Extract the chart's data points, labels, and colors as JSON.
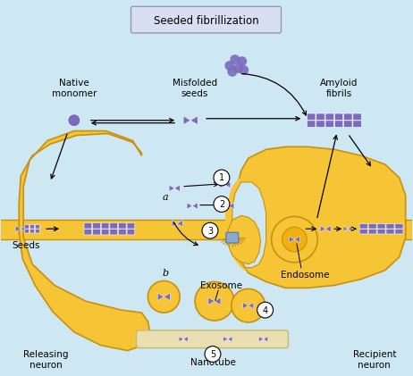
{
  "bg_color": "#cde8f2",
  "neuron_color": "#f5c535",
  "neuron_edge_color": "#c89010",
  "membrane_color": "#f5c535",
  "protein_color": "#7b6bbf",
  "protein_edge": "#5a4fa0",
  "nanotube_color": "#e8deb0",
  "nanotube_edge": "#c8b870",
  "box_color": "#d8dff0",
  "box_edge_color": "#9099bb",
  "endosome_outer": "#f5c535",
  "endosome_inner": "#f0b820",
  "title": "Seeded fibrillization",
  "label_native": "Native\nmonomer",
  "label_misfolded": "Misfolded\nseeds",
  "label_amyloid": "Amyloid\nfibrils",
  "label_seeds": "Seeds",
  "label_releasing": "Releasing\nneuron",
  "label_recipient": "Recipient\nneuron",
  "label_a": "a",
  "label_b": "b",
  "label_exosome": "Exosome",
  "label_endosome": "Endosome",
  "label_nanotube": "Nanotube",
  "circle_labels": [
    "1",
    "2",
    "3",
    "4",
    "5"
  ]
}
